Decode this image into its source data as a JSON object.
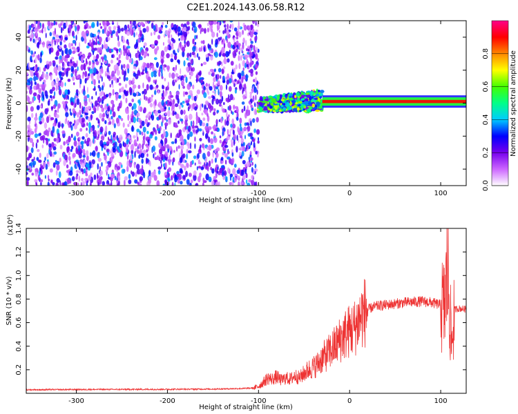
{
  "title": "C2E1.2024.143.06.58.R12",
  "chart_data": [
    {
      "type": "heatmap",
      "xlabel": "Height of straight line (km)",
      "ylabel": "Frequency (Hz)",
      "xlim": [
        -355,
        128
      ],
      "ylim": [
        -50,
        50
      ],
      "x_ticks": [
        -300,
        -200,
        -100,
        0,
        100
      ],
      "y_ticks": [
        -40,
        -20,
        0,
        20,
        40
      ],
      "x_tick_labels": [
        "-300",
        "-200",
        "-100",
        "0",
        "100"
      ],
      "y_tick_labels": [
        "-40",
        "-20",
        "0",
        "20",
        "40"
      ],
      "colorbar": {
        "label": "Normalized spectral amplitude",
        "range": [
          0.0,
          1.0
        ],
        "ticks": [
          0.0,
          0.2,
          0.4,
          0.6,
          0.8
        ],
        "tick_labels": [
          "0.0",
          "0.2",
          "0.4",
          "0.6",
          "0.8"
        ],
        "colormap": [
          "#ffffff",
          "#cc66ff",
          "#7700ee",
          "#0000ff",
          "#00ccff",
          "#00ff88",
          "#44ff00",
          "#ffff00",
          "#ff8800",
          "#ff0000",
          "#ff0088"
        ]
      },
      "regions": [
        {
          "x_from": -355,
          "x_to": -100,
          "freq_from": -50,
          "freq_to": 50,
          "level": 0.15
        },
        {
          "x_from": -100,
          "x_to": -30,
          "freq_from": -5,
          "freq_to": 8,
          "level": 0.45
        },
        {
          "x_from": -30,
          "x_to": 128,
          "freq_from": 0,
          "freq_to": 2,
          "level": 0.9
        }
      ]
    },
    {
      "type": "line",
      "xlabel": "Height of straight line (km)",
      "ylabel": "SNR (10 * v/v)",
      "y_multiplier": "(x10⁴)",
      "xlim": [
        -355,
        128
      ],
      "ylim": [
        0,
        14000
      ],
      "x_ticks": [
        -300,
        -200,
        -100,
        0,
        100
      ],
      "y_ticks": [
        2000,
        4000,
        6000,
        8000,
        10000,
        12000,
        14000
      ],
      "x_tick_labels": [
        "-300",
        "-200",
        "-100",
        "0",
        "100"
      ],
      "y_tick_labels": [
        "0.2",
        "0.4",
        "0.6",
        "0.8",
        "1.0",
        "1.2",
        "1.4"
      ],
      "color": "#ee3333",
      "series": [
        {
          "x": [
            -355,
            -300,
            -250,
            -200,
            -150,
            -120,
            -105,
            -100,
            -95,
            -90,
            -85,
            -80,
            -75,
            -70,
            -65,
            -60,
            -55,
            -50,
            -45,
            -40,
            -35,
            -30,
            -25,
            -20,
            -15,
            -10,
            -5,
            0,
            5,
            10,
            15,
            20,
            25,
            30,
            40,
            50,
            60,
            70,
            80,
            90,
            95,
            100,
            104,
            106,
            108,
            110,
            112,
            115,
            120,
            128
          ],
          "y": [
            300,
            320,
            330,
            340,
            360,
            400,
            450,
            600,
            900,
            1300,
            1200,
            1400,
            1100,
            1300,
            1200,
            1500,
            1300,
            1700,
            2000,
            2200,
            2500,
            3000,
            3300,
            3700,
            4100,
            4600,
            5000,
            5300,
            5500,
            6200,
            6800,
            7100,
            7300,
            7400,
            7500,
            7600,
            7700,
            7750,
            7800,
            7700,
            7600,
            7500,
            7200,
            9000,
            10500,
            7000,
            4000,
            7100,
            7200,
            7150
          ]
        }
      ]
    }
  ]
}
